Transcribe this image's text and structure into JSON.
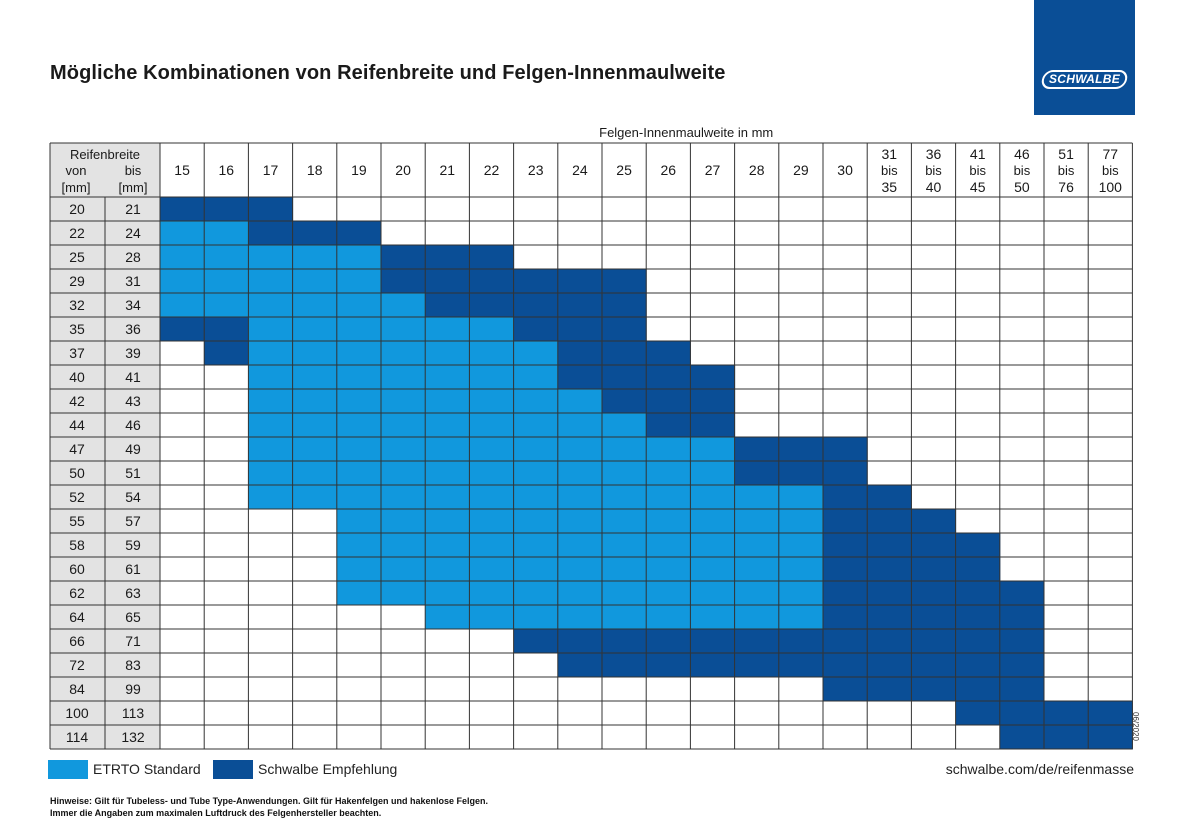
{
  "title": "Mögliche Kombinationen von Reifenbreite und Felgen-Innenmaulweite",
  "logo": {
    "text": "SCHWALBE",
    "bg_color": "#0a4e96"
  },
  "legend": [
    {
      "label": "ETRTO Standard",
      "color": "#1198dd"
    },
    {
      "label": "Schwalbe Empfehlung",
      "color": "#0a4e96"
    }
  ],
  "url": "schwalbe.com/de/reifenmasse",
  "date_code": "06/2020",
  "notes": [
    "Hinweise: Gilt für Tubeless- und Tube Type-Anwendungen. Gilt für Hakenfelgen und hakenlose Felgen.",
    "Immer die Angaben zum maximalen Luftdruck des Felgenhersteller beachten."
  ],
  "chart_data": {
    "type": "table",
    "title": "Mögliche Kombinationen von Reifenbreite und Felgen-Innenmaulweite",
    "xlabel": "Felgen-Innenmaulweite in mm",
    "ylabel": "Reifenbreite",
    "row_header": {
      "title": "Reifenbreite",
      "from_label": "von",
      "to_label": "bis",
      "unit_from": "[mm]",
      "unit_to": "[mm]"
    },
    "columns": [
      [
        "15"
      ],
      [
        "16"
      ],
      [
        "17"
      ],
      [
        "18"
      ],
      [
        "19"
      ],
      [
        "20"
      ],
      [
        "21"
      ],
      [
        "22"
      ],
      [
        "23"
      ],
      [
        "24"
      ],
      [
        "25"
      ],
      [
        "26"
      ],
      [
        "27"
      ],
      [
        "28"
      ],
      [
        "29"
      ],
      [
        "30"
      ],
      [
        "31",
        "bis",
        "35"
      ],
      [
        "36",
        "bis",
        "40"
      ],
      [
        "41",
        "bis",
        "45"
      ],
      [
        "46",
        "bis",
        "50"
      ],
      [
        "51",
        "bis",
        "76"
      ],
      [
        "77",
        "bis",
        "100"
      ]
    ],
    "rows": [
      {
        "from": "20",
        "to": "21"
      },
      {
        "from": "22",
        "to": "24"
      },
      {
        "from": "25",
        "to": "28"
      },
      {
        "from": "29",
        "to": "31"
      },
      {
        "from": "32",
        "to": "34"
      },
      {
        "from": "35",
        "to": "36"
      },
      {
        "from": "37",
        "to": "39"
      },
      {
        "from": "40",
        "to": "41"
      },
      {
        "from": "42",
        "to": "43"
      },
      {
        "from": "44",
        "to": "46"
      },
      {
        "from": "47",
        "to": "49"
      },
      {
        "from": "50",
        "to": "51"
      },
      {
        "from": "52",
        "to": "54"
      },
      {
        "from": "55",
        "to": "57"
      },
      {
        "from": "58",
        "to": "59"
      },
      {
        "from": "60",
        "to": "61"
      },
      {
        "from": "62",
        "to": "63"
      },
      {
        "from": "64",
        "to": "65"
      },
      {
        "from": "66",
        "to": "71"
      },
      {
        "from": "72",
        "to": "83"
      },
      {
        "from": "84",
        "to": "99"
      },
      {
        "from": "100",
        "to": "113"
      },
      {
        "from": "114",
        "to": "132"
      }
    ],
    "cell_legend": {
      "0": "none",
      "1": "ETRTO Standard",
      "2": "Schwalbe Empfehlung"
    },
    "cells": [
      [
        2,
        2,
        2,
        0,
        0,
        0,
        0,
        0,
        0,
        0,
        0,
        0,
        0,
        0,
        0,
        0,
        0,
        0,
        0,
        0,
        0,
        0
      ],
      [
        1,
        1,
        2,
        2,
        2,
        0,
        0,
        0,
        0,
        0,
        0,
        0,
        0,
        0,
        0,
        0,
        0,
        0,
        0,
        0,
        0,
        0
      ],
      [
        1,
        1,
        1,
        1,
        1,
        2,
        2,
        2,
        0,
        0,
        0,
        0,
        0,
        0,
        0,
        0,
        0,
        0,
        0,
        0,
        0,
        0
      ],
      [
        1,
        1,
        1,
        1,
        1,
        2,
        2,
        2,
        2,
        2,
        2,
        0,
        0,
        0,
        0,
        0,
        0,
        0,
        0,
        0,
        0,
        0
      ],
      [
        1,
        1,
        1,
        1,
        1,
        1,
        2,
        2,
        2,
        2,
        2,
        0,
        0,
        0,
        0,
        0,
        0,
        0,
        0,
        0,
        0,
        0
      ],
      [
        2,
        2,
        1,
        1,
        1,
        1,
        1,
        1,
        2,
        2,
        2,
        0,
        0,
        0,
        0,
        0,
        0,
        0,
        0,
        0,
        0,
        0
      ],
      [
        0,
        2,
        1,
        1,
        1,
        1,
        1,
        1,
        1,
        2,
        2,
        2,
        0,
        0,
        0,
        0,
        0,
        0,
        0,
        0,
        0,
        0
      ],
      [
        0,
        0,
        1,
        1,
        1,
        1,
        1,
        1,
        1,
        2,
        2,
        2,
        2,
        0,
        0,
        0,
        0,
        0,
        0,
        0,
        0,
        0
      ],
      [
        0,
        0,
        1,
        1,
        1,
        1,
        1,
        1,
        1,
        1,
        2,
        2,
        2,
        0,
        0,
        0,
        0,
        0,
        0,
        0,
        0,
        0
      ],
      [
        0,
        0,
        1,
        1,
        1,
        1,
        1,
        1,
        1,
        1,
        1,
        2,
        2,
        0,
        0,
        0,
        0,
        0,
        0,
        0,
        0,
        0
      ],
      [
        0,
        0,
        1,
        1,
        1,
        1,
        1,
        1,
        1,
        1,
        1,
        1,
        1,
        2,
        2,
        2,
        0,
        0,
        0,
        0,
        0,
        0
      ],
      [
        0,
        0,
        1,
        1,
        1,
        1,
        1,
        1,
        1,
        1,
        1,
        1,
        1,
        2,
        2,
        2,
        0,
        0,
        0,
        0,
        0,
        0
      ],
      [
        0,
        0,
        1,
        1,
        1,
        1,
        1,
        1,
        1,
        1,
        1,
        1,
        1,
        1,
        1,
        2,
        2,
        0,
        0,
        0,
        0,
        0
      ],
      [
        0,
        0,
        0,
        0,
        1,
        1,
        1,
        1,
        1,
        1,
        1,
        1,
        1,
        1,
        1,
        2,
        2,
        2,
        0,
        0,
        0,
        0
      ],
      [
        0,
        0,
        0,
        0,
        1,
        1,
        1,
        1,
        1,
        1,
        1,
        1,
        1,
        1,
        1,
        2,
        2,
        2,
        2,
        0,
        0,
        0
      ],
      [
        0,
        0,
        0,
        0,
        1,
        1,
        1,
        1,
        1,
        1,
        1,
        1,
        1,
        1,
        1,
        2,
        2,
        2,
        2,
        0,
        0,
        0
      ],
      [
        0,
        0,
        0,
        0,
        1,
        1,
        1,
        1,
        1,
        1,
        1,
        1,
        1,
        1,
        1,
        2,
        2,
        2,
        2,
        2,
        0,
        0
      ],
      [
        0,
        0,
        0,
        0,
        0,
        0,
        1,
        1,
        1,
        1,
        1,
        1,
        1,
        1,
        1,
        2,
        2,
        2,
        2,
        2,
        0,
        0
      ],
      [
        0,
        0,
        0,
        0,
        0,
        0,
        0,
        0,
        2,
        2,
        2,
        2,
        2,
        2,
        2,
        2,
        2,
        2,
        2,
        2,
        0,
        0
      ],
      [
        0,
        0,
        0,
        0,
        0,
        0,
        0,
        0,
        0,
        2,
        2,
        2,
        2,
        2,
        2,
        2,
        2,
        2,
        2,
        2,
        0,
        0
      ],
      [
        0,
        0,
        0,
        0,
        0,
        0,
        0,
        0,
        0,
        0,
        0,
        0,
        0,
        0,
        0,
        2,
        2,
        2,
        2,
        2,
        0,
        0
      ],
      [
        0,
        0,
        0,
        0,
        0,
        0,
        0,
        0,
        0,
        0,
        0,
        0,
        0,
        0,
        0,
        0,
        0,
        0,
        2,
        2,
        2,
        2
      ],
      [
        0,
        0,
        0,
        0,
        0,
        0,
        0,
        0,
        0,
        0,
        0,
        0,
        0,
        0,
        0,
        0,
        0,
        0,
        0,
        2,
        2,
        2
      ]
    ]
  }
}
